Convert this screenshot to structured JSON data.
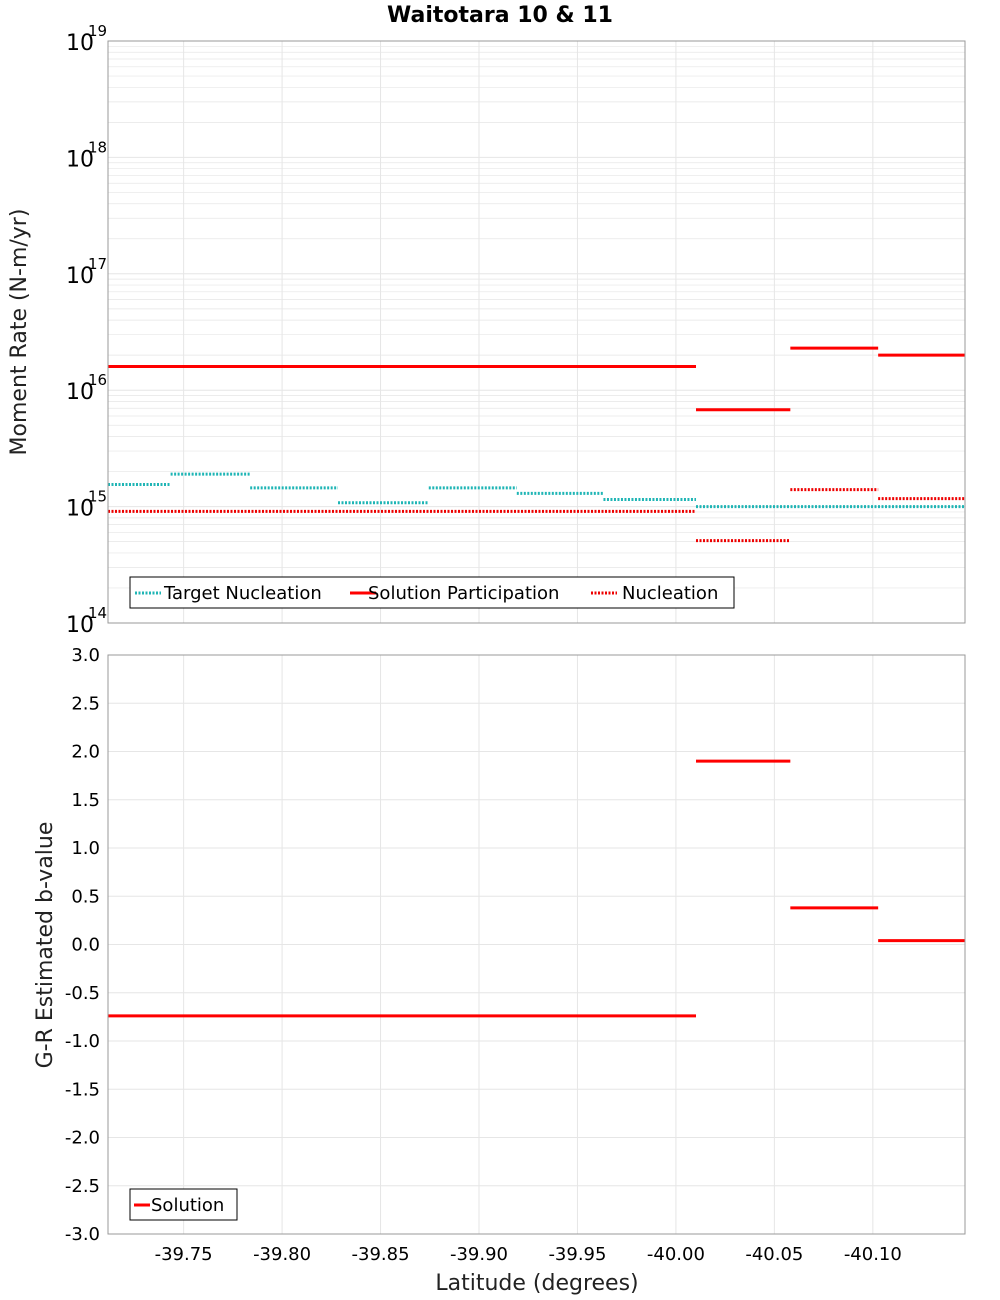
{
  "title": "Waitotara 10 & 11",
  "x_axis": {
    "label": "Latitude (degrees)",
    "ticks": [
      -39.75,
      -39.8,
      -39.85,
      -39.9,
      -39.95,
      -40.0,
      -40.05,
      -40.1
    ],
    "tick_labels": [
      "-39.75",
      "-39.80",
      "-39.85",
      "-39.90",
      "-39.95",
      "-40.00",
      "-40.05",
      "-40.10"
    ],
    "range": [
      -39.7116,
      -40.1468
    ],
    "reversed": true
  },
  "colors": {
    "target_nucleation": "#1fb5b5",
    "solution": "#ff0000",
    "nucleation": "#ee0000",
    "grid": "#e6e6e6",
    "frame": "#999999"
  },
  "chart_data": [
    {
      "type": "line",
      "panel": "top",
      "ylabel": "Moment Rate (N-m/yr)",
      "yscale": "log",
      "ylim": [
        100000000000000.0,
        1e+19
      ],
      "y_tick_labels": [
        {
          "base": "10",
          "exp": "19"
        },
        {
          "base": "10",
          "exp": "18"
        },
        {
          "base": "10",
          "exp": "17"
        },
        {
          "base": "10",
          "exp": "16"
        },
        {
          "base": "10",
          "exp": "15"
        },
        {
          "base": "10",
          "exp": "14"
        }
      ],
      "legend": {
        "position": "bottom-left",
        "entries": [
          "Target Nucleation",
          "Solution Participation",
          "Nucleation"
        ]
      },
      "grid": true,
      "series": [
        {
          "name": "Target Nucleation",
          "style": "dotted",
          "segments": [
            {
              "x": [
                -39.7116,
                -39.7434
              ],
              "y": 1550000000000000.0
            },
            {
              "x": [
                -39.7434,
                -39.7838
              ],
              "y": 1900000000000000.0
            },
            {
              "x": [
                -39.7838,
                -39.8284
              ],
              "y": 1450000000000000.0
            },
            {
              "x": [
                -39.8284,
                -39.8745
              ],
              "y": 1080000000000000.0
            },
            {
              "x": [
                -39.8745,
                -39.9192
              ],
              "y": 1450000000000000.0
            },
            {
              "x": [
                -39.9192,
                -39.9632
              ],
              "y": 1300000000000000.0
            },
            {
              "x": [
                -39.9632,
                -40.0102
              ],
              "y": 1150000000000000.0
            },
            {
              "x": [
                -40.0102,
                -40.1468
              ],
              "y": 1000000000000000.0
            }
          ]
        },
        {
          "name": "Solution Participation",
          "style": "solid",
          "segments": [
            {
              "x": [
                -39.7116,
                -40.0102
              ],
              "y": 1.6e+16
            },
            {
              "x": [
                -40.0102,
                -40.0581
              ],
              "y": 6800000000000000.0
            },
            {
              "x": [
                -40.0581,
                -40.1027
              ],
              "y": 2.3e+16
            },
            {
              "x": [
                -40.1027,
                -40.1468
              ],
              "y": 2e+16
            }
          ]
        },
        {
          "name": "Nucleation",
          "style": "dotted",
          "segments": [
            {
              "x": [
                -39.7116,
                -40.0102
              ],
              "y": 910000000000000.0
            },
            {
              "x": [
                -40.0102,
                -40.0581
              ],
              "y": 510000000000000.0
            },
            {
              "x": [
                -40.0581,
                -40.1027
              ],
              "y": 1400000000000000.0
            },
            {
              "x": [
                -40.1027,
                -40.1468
              ],
              "y": 1170000000000000.0
            }
          ]
        }
      ]
    },
    {
      "type": "line",
      "panel": "bottom",
      "ylabel": "G-R Estimated b-value",
      "ylim": [
        -3.0,
        3.0
      ],
      "y_ticks": [
        3.0,
        2.5,
        2.0,
        1.5,
        1.0,
        0.5,
        0.0,
        -0.5,
        -1.0,
        -1.5,
        -2.0,
        -2.5,
        -3.0
      ],
      "y_tick_labels": [
        "3.0",
        "2.5",
        "2.0",
        "1.5",
        "1.0",
        "0.5",
        "0.0",
        "-0.5",
        "-1.0",
        "-1.5",
        "-2.0",
        "-2.5",
        "-3.0"
      ],
      "legend": {
        "position": "bottom-left",
        "entries": [
          "Solution"
        ]
      },
      "grid": true,
      "series": [
        {
          "name": "Solution",
          "style": "solid",
          "segments": [
            {
              "x": [
                -39.7116,
                -40.0102
              ],
              "y": -0.74
            },
            {
              "x": [
                -40.0102,
                -40.0581
              ],
              "y": 1.9
            },
            {
              "x": [
                -40.0581,
                -40.1027
              ],
              "y": 0.38
            },
            {
              "x": [
                -40.1027,
                -40.1468
              ],
              "y": 0.04
            }
          ]
        }
      ]
    }
  ]
}
